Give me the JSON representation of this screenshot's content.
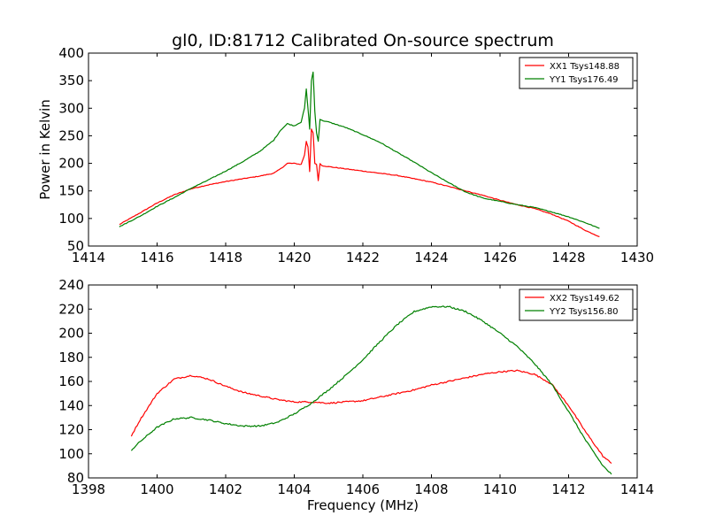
{
  "figure": {
    "title": "gl0, ID:81712 Calibrated On-source spectrum",
    "shared_xlabel": "Frequency (MHz)"
  },
  "chart_data": [
    {
      "type": "line",
      "title": "gl0, ID:81712 Calibrated On-source spectrum",
      "xlabel": "",
      "ylabel": "Power in Kelvin",
      "xlim": [
        1414,
        1430
      ],
      "ylim": [
        50,
        400
      ],
      "xticks": [
        1414,
        1416,
        1418,
        1420,
        1422,
        1424,
        1426,
        1428,
        1430
      ],
      "yticks": [
        50,
        100,
        150,
        200,
        250,
        300,
        350,
        400
      ],
      "xtick_labels": [
        "1414",
        "1416",
        "1418",
        "1420",
        "1422",
        "1424",
        "1426",
        "1428",
        "1430"
      ],
      "ytick_labels": [
        "50",
        "100",
        "150",
        "200",
        "250",
        "300",
        "350",
        "400"
      ],
      "grid": false,
      "legend": "top-right",
      "series": [
        {
          "name": "XX1 Tsys148.88",
          "color": "#ff0000",
          "x": [
            1414.9,
            1415.5,
            1416.0,
            1416.5,
            1417.0,
            1417.5,
            1418.0,
            1418.5,
            1419.0,
            1419.4,
            1419.6,
            1419.8,
            1420.0,
            1420.2,
            1420.3,
            1420.35,
            1420.4,
            1420.45,
            1420.5,
            1420.55,
            1420.6,
            1420.65,
            1420.7,
            1420.75,
            1420.8,
            1421.0,
            1421.5,
            1422.0,
            1422.5,
            1423.0,
            1423.5,
            1424.0,
            1424.5,
            1425.0,
            1425.5,
            1426.0,
            1426.5,
            1427.0,
            1427.5,
            1428.0,
            1428.5,
            1428.9
          ],
          "values": [
            89,
            110,
            128,
            143,
            154,
            161,
            167,
            172,
            177,
            182,
            190,
            200,
            200,
            198,
            215,
            240,
            230,
            185,
            262,
            255,
            200,
            198,
            168,
            200,
            196,
            194,
            190,
            186,
            182,
            178,
            172,
            166,
            158,
            150,
            142,
            133,
            125,
            118,
            108,
            95,
            78,
            67
          ]
        },
        {
          "name": "YY1 Tsys176.49",
          "color": "#008000",
          "x": [
            1414.9,
            1415.5,
            1416.0,
            1416.5,
            1417.0,
            1417.5,
            1418.0,
            1418.5,
            1419.0,
            1419.4,
            1419.6,
            1419.8,
            1420.0,
            1420.2,
            1420.3,
            1420.35,
            1420.4,
            1420.45,
            1420.5,
            1420.55,
            1420.6,
            1420.65,
            1420.7,
            1420.75,
            1420.8,
            1421.0,
            1421.5,
            1422.0,
            1422.5,
            1423.0,
            1423.5,
            1424.0,
            1424.5,
            1425.0,
            1425.5,
            1426.0,
            1426.5,
            1427.0,
            1427.5,
            1428.0,
            1428.5,
            1428.9
          ],
          "values": [
            85,
            104,
            122,
            138,
            155,
            170,
            186,
            203,
            222,
            242,
            260,
            272,
            268,
            275,
            300,
            335,
            300,
            262,
            350,
            365,
            295,
            255,
            240,
            280,
            278,
            275,
            265,
            252,
            238,
            220,
            202,
            183,
            165,
            148,
            137,
            131,
            125,
            120,
            112,
            103,
            92,
            82
          ]
        }
      ]
    },
    {
      "type": "line",
      "title": "",
      "xlabel": "Frequency (MHz)",
      "ylabel": "",
      "xlim": [
        1398,
        1414
      ],
      "ylim": [
        80,
        240
      ],
      "xticks": [
        1398,
        1400,
        1402,
        1404,
        1406,
        1408,
        1410,
        1412,
        1414
      ],
      "yticks": [
        80,
        100,
        120,
        140,
        160,
        180,
        200,
        220,
        240
      ],
      "xtick_labels": [
        "1398",
        "1400",
        "1402",
        "1404",
        "1406",
        "1408",
        "1410",
        "1412",
        "1414"
      ],
      "ytick_labels": [
        "80",
        "100",
        "120",
        "140",
        "160",
        "180",
        "200",
        "220",
        "240"
      ],
      "grid": false,
      "legend": "top-right",
      "series": [
        {
          "name": "XX2 Tsys149.62",
          "color": "#ff0000",
          "x": [
            1399.25,
            1399.5,
            1400.0,
            1400.5,
            1401.0,
            1401.5,
            1402.0,
            1402.5,
            1403.0,
            1403.5,
            1404.0,
            1404.5,
            1405.0,
            1405.5,
            1406.0,
            1406.5,
            1407.0,
            1407.5,
            1408.0,
            1408.5,
            1409.0,
            1409.5,
            1410.0,
            1410.5,
            1411.0,
            1411.5,
            1412.0,
            1412.5,
            1413.0,
            1413.25
          ],
          "values": [
            115,
            128,
            150,
            162,
            165,
            162,
            156,
            151,
            148,
            145,
            143,
            143,
            142,
            143,
            144,
            147,
            150,
            153,
            157,
            160,
            163,
            166,
            168,
            169,
            166,
            158,
            140,
            118,
            98,
            92
          ]
        },
        {
          "name": "YY2 Tsys156.80",
          "color": "#008000",
          "x": [
            1399.25,
            1399.5,
            1400.0,
            1400.5,
            1401.0,
            1401.5,
            1402.0,
            1402.5,
            1403.0,
            1403.5,
            1404.0,
            1404.5,
            1405.0,
            1405.5,
            1406.0,
            1406.5,
            1407.0,
            1407.5,
            1408.0,
            1408.5,
            1409.0,
            1409.5,
            1410.0,
            1410.5,
            1411.0,
            1411.5,
            1412.0,
            1412.5,
            1413.0,
            1413.25
          ],
          "values": [
            103,
            110,
            122,
            129,
            130,
            128,
            125,
            123,
            123,
            126,
            133,
            142,
            153,
            165,
            178,
            193,
            207,
            218,
            222,
            222,
            218,
            210,
            200,
            189,
            175,
            158,
            135,
            111,
            90,
            83
          ]
        }
      ]
    }
  ]
}
